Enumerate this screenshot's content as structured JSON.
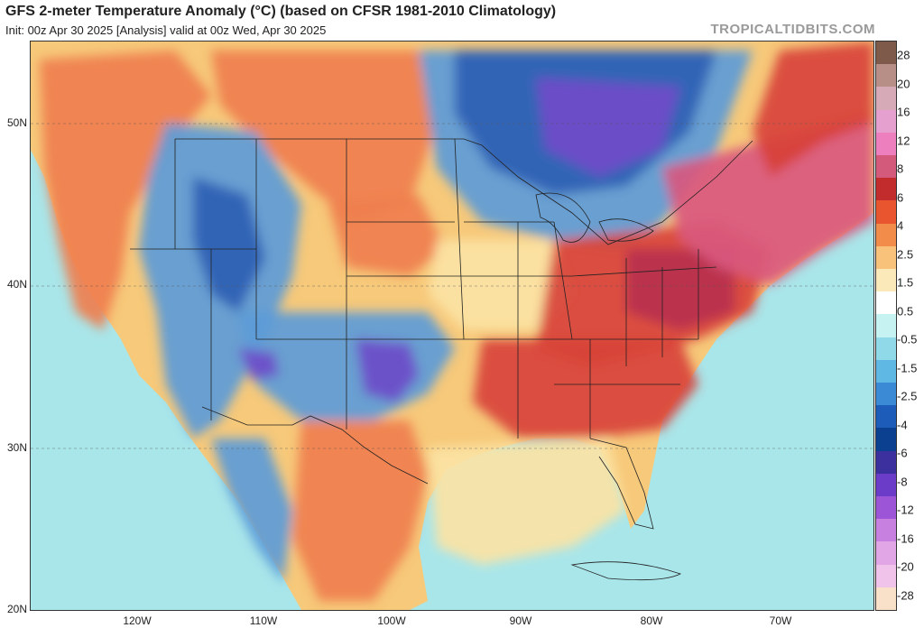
{
  "header": {
    "title": "GFS 2-meter Temperature Anomaly (°C) (based on CFSR 1981-2010 Climatology)",
    "subtitle": "Init: 00z Apr 30 2025   [Analysis]   valid at 00z Wed, Apr 30 2025",
    "credit": "TROPICALTIDBITS.COM"
  },
  "map": {
    "lat_labels": [
      "50N",
      "40N",
      "30N",
      "20N"
    ],
    "lon_labels": [
      "120W",
      "110W",
      "100W",
      "90W",
      "80W",
      "70W"
    ],
    "colors": {
      "land_base": "#f7c97a",
      "ocean_base": "#a9e6ea",
      "strong_warm": "#d8423a",
      "very_warm": "#b9324f",
      "extreme_warm": "#d9587e",
      "warm": "#ef7e4e",
      "mild_warm": "#fbe3a4",
      "cool": "#5c9bd8",
      "cold": "#2f5fb4",
      "very_cold": "#6f4bc9",
      "near_zero": "#f6f6f2",
      "border_line": "#222222"
    }
  },
  "colorbar": {
    "labels": [
      "28",
      "20",
      "16",
      "12",
      "8",
      "6",
      "4",
      "2.5",
      "1.5",
      "0.5",
      "-0.5",
      "-1.5",
      "-2.5",
      "-4",
      "-6",
      "-8",
      "-12",
      "-16",
      "-20",
      "-28"
    ],
    "colors": [
      "#7d5a49",
      "#b88f86",
      "#d7aab8",
      "#e6a0cf",
      "#ee7fbf",
      "#d35a7a",
      "#c32c2c",
      "#e8552f",
      "#f28c4a",
      "#f9c27a",
      "#fce9b9",
      "#ffffff",
      "#c6f2f2",
      "#8fd9e8",
      "#5fb8e3",
      "#3b8ad6",
      "#1d5cb8",
      "#0b3f8f",
      "#3c2f9e",
      "#6a3cc8",
      "#9d55d8",
      "#c77fe0",
      "#e0a6e6",
      "#f0c4ea",
      "#f9e0c8"
    ]
  }
}
